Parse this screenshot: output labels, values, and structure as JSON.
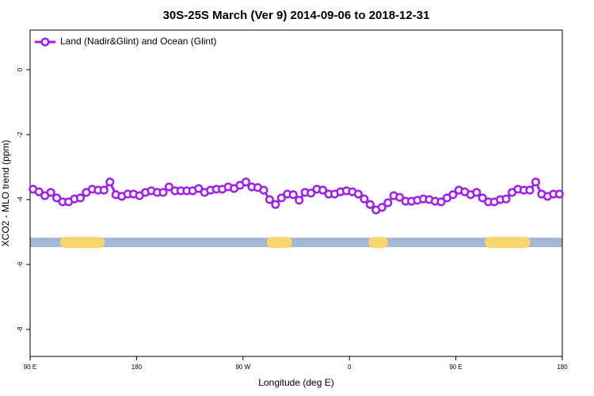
{
  "chart_data": {
    "type": "line",
    "title": "30S-25S March (Ver 9)   2014-09-06 to 2018-12-31",
    "xlabel": "Longitude (deg E)",
    "ylabel": "XCO2 - MLO trend (ppm)",
    "xlim": [
      90,
      540
    ],
    "xticks": [
      {
        "value": 90,
        "label": "90 E"
      },
      180,
      {
        "value": 270,
        "label": "90 W"
      },
      {
        "value": 360,
        "label": "0"
      },
      {
        "value": 450,
        "label": "90 E"
      },
      {
        "value": 540,
        "label": "180"
      }
    ],
    "ylim": [
      -8.83,
      1.22
    ],
    "yticks": [
      0,
      -2,
      -4,
      -6,
      -8
    ],
    "legend": "upper left",
    "x": [
      92.5,
      97.5,
      102.5,
      107.5,
      112.5,
      117.5,
      122.5,
      127.5,
      132.5,
      137.5,
      142.5,
      147.5,
      152.5,
      157.5,
      162.5,
      167.5,
      172.5,
      177.5,
      182.5,
      187.5,
      192.5,
      197.5,
      202.5,
      207.5,
      212.5,
      217.5,
      222.5,
      227.5,
      232.5,
      237.5,
      242.5,
      247.5,
      252.5,
      257.5,
      262.5,
      267.5,
      272.5,
      277.5,
      282.5,
      287.5,
      292.5,
      297.5,
      302.5,
      307.5,
      312.5,
      317.5,
      322.5,
      327.5,
      332.5,
      337.5,
      342.5,
      347.5,
      352.5,
      357.5,
      362.5,
      367.5,
      372.5,
      377.5,
      382.5,
      387.5,
      392.5,
      397.5,
      402.5,
      407.5,
      412.5,
      417.5,
      422.5,
      427.5,
      432.5,
      437.5,
      442.5,
      447.5,
      452.5,
      457.5,
      462.5,
      467.5,
      472.5,
      477.5,
      482.5,
      487.5,
      492.5,
      497.5,
      502.5,
      507.5,
      512.5,
      517.5,
      522.5,
      527.5,
      532.5,
      537.5
    ],
    "series": [
      {
        "name": "Land (Nadir&Glint) and Ocean (Glint)",
        "color": "#a020f0",
        "values": [
          -3.68,
          -3.76,
          -3.88,
          -3.78,
          -3.95,
          -4.07,
          -4.07,
          -3.98,
          -3.95,
          -3.78,
          -3.68,
          -3.71,
          -3.71,
          -3.46,
          -3.85,
          -3.9,
          -3.83,
          -3.83,
          -3.88,
          -3.78,
          -3.73,
          -3.78,
          -3.78,
          -3.61,
          -3.73,
          -3.73,
          -3.73,
          -3.73,
          -3.66,
          -3.78,
          -3.71,
          -3.68,
          -3.68,
          -3.61,
          -3.66,
          -3.56,
          -3.46,
          -3.61,
          -3.63,
          -3.71,
          -4.0,
          -4.15,
          -3.95,
          -3.83,
          -3.85,
          -4.02,
          -3.78,
          -3.8,
          -3.68,
          -3.71,
          -3.83,
          -3.83,
          -3.76,
          -3.73,
          -3.76,
          -3.83,
          -3.98,
          -4.15,
          -4.32,
          -4.24,
          -4.1,
          -3.88,
          -3.93,
          -4.05,
          -4.05,
          -4.02,
          -3.98,
          -4.0,
          -4.05,
          -4.07,
          -3.95,
          -3.85,
          -3.71,
          -3.76,
          -3.85,
          -3.78,
          -3.95,
          -4.07,
          -4.07,
          -4.0,
          -3.98,
          -3.78,
          -3.68,
          -3.71,
          -3.71,
          -3.46,
          -3.83,
          -3.9,
          -3.83,
          -3.83
        ]
      }
    ],
    "surface_band": {
      "y": -5.32,
      "ocean_color": "#a3b8d8",
      "land_color": "#f9d56e",
      "land": [
        [
          115.4,
          153
        ],
        [
          290,
          311.7
        ],
        [
          376,
          392.7
        ],
        [
          474.4,
          513
        ]
      ]
    }
  }
}
